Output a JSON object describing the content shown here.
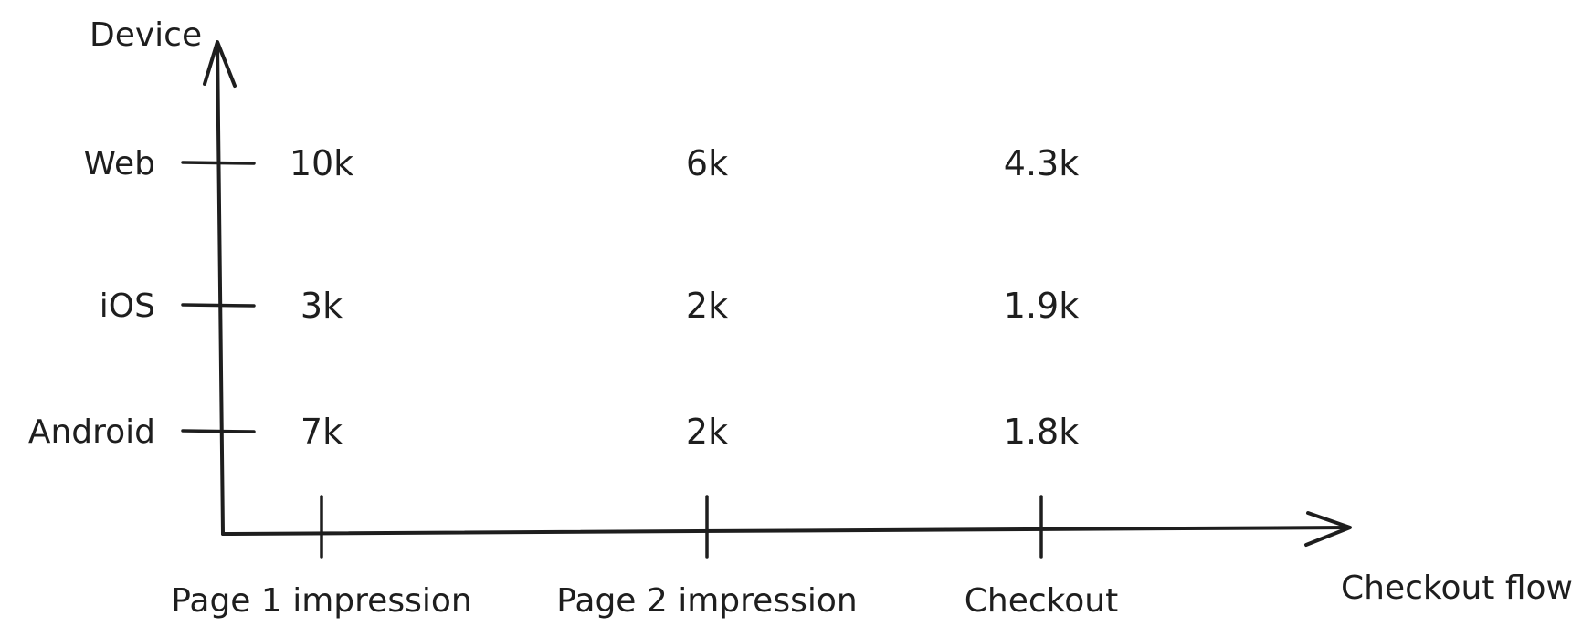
{
  "chart_data": {
    "type": "table",
    "xlabel": "Checkout flow",
    "ylabel": "Device",
    "categories": [
      "Page 1 impression",
      "Page 2 impression",
      "Checkout"
    ],
    "rows": [
      "Web",
      "iOS",
      "Android"
    ],
    "series": [
      {
        "name": "Web",
        "values": [
          "10k",
          "6k",
          "4.3k"
        ]
      },
      {
        "name": "iOS",
        "values": [
          "3k",
          "2k",
          "1.9k"
        ]
      },
      {
        "name": "Android",
        "values": [
          "7k",
          "2k",
          "1.8k"
        ]
      }
    ],
    "grid": false
  }
}
